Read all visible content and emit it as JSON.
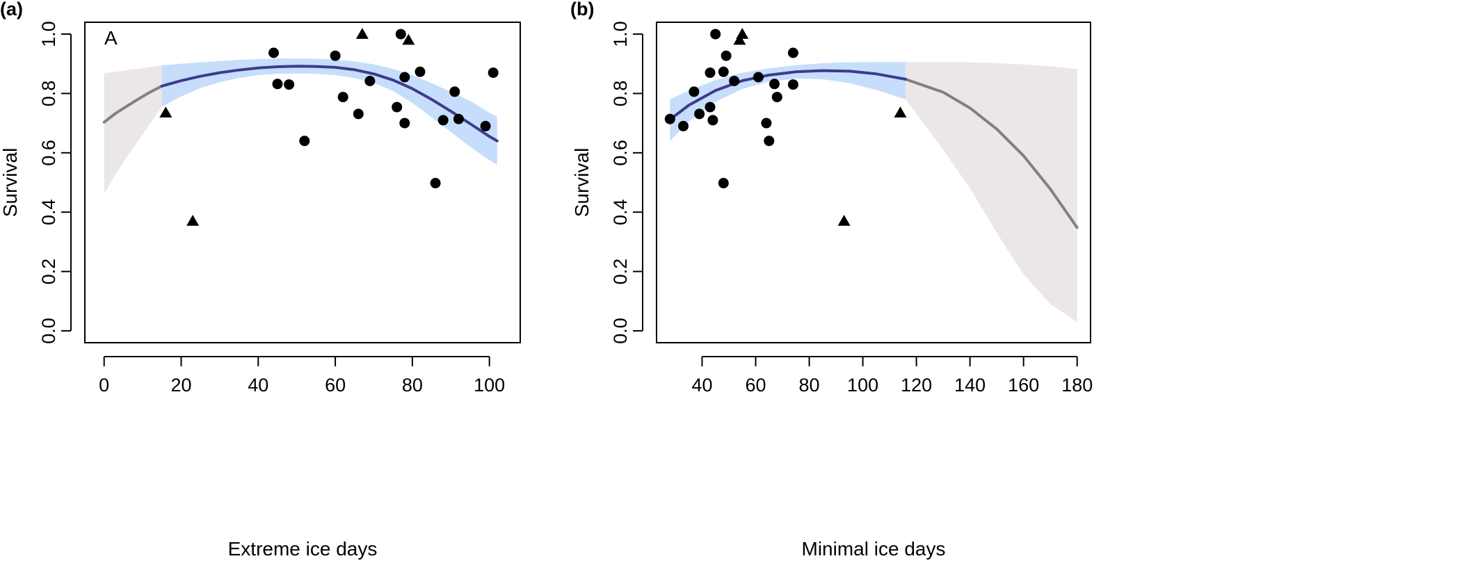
{
  "chart_data": [
    {
      "type": "scatter",
      "panel_label": "(a)",
      "inset_label": "A",
      "xlabel": "Extreme ice days",
      "ylabel": "Survival",
      "xlim": [
        -5,
        108
      ],
      "ylim": [
        -0.04,
        1.04
      ],
      "xticks": [
        0,
        20,
        40,
        60,
        80,
        100
      ],
      "yticks": [
        0.0,
        0.2,
        0.4,
        0.6,
        0.8,
        1.0
      ],
      "grid": false,
      "points_circle": [
        [
          44,
          0.937
        ],
        [
          45,
          0.832
        ],
        [
          48,
          0.83
        ],
        [
          52,
          0.64
        ],
        [
          60,
          0.927
        ],
        [
          62,
          0.788
        ],
        [
          66,
          0.731
        ],
        [
          69,
          0.842
        ],
        [
          76,
          0.754
        ],
        [
          77,
          1.0
        ],
        [
          78,
          0.855
        ],
        [
          78,
          0.7
        ],
        [
          82,
          0.873
        ],
        [
          86,
          0.498
        ],
        [
          88,
          0.71
        ],
        [
          91,
          0.806
        ],
        [
          92,
          0.714
        ],
        [
          99,
          0.69
        ],
        [
          101,
          0.87
        ]
      ],
      "points_triangle": [
        [
          16,
          0.735
        ],
        [
          23,
          0.37
        ],
        [
          67,
          1.0
        ],
        [
          79,
          0.98
        ]
      ],
      "fit_observed": {
        "x": [
          15,
          20,
          25,
          30,
          35,
          40,
          45,
          50,
          55,
          60,
          65,
          70,
          75,
          80,
          85,
          90,
          95,
          100,
          102
        ],
        "y": [
          0.825,
          0.843,
          0.858,
          0.87,
          0.879,
          0.886,
          0.89,
          0.892,
          0.891,
          0.888,
          0.88,
          0.866,
          0.845,
          0.816,
          0.78,
          0.74,
          0.698,
          0.655,
          0.64
        ],
        "lower": [
          0.755,
          0.79,
          0.818,
          0.838,
          0.852,
          0.862,
          0.866,
          0.867,
          0.866,
          0.862,
          0.852,
          0.835,
          0.808,
          0.768,
          0.72,
          0.67,
          0.62,
          0.575,
          0.56
        ],
        "upper": [
          0.895,
          0.9,
          0.905,
          0.909,
          0.913,
          0.916,
          0.918,
          0.918,
          0.917,
          0.914,
          0.908,
          0.898,
          0.883,
          0.862,
          0.835,
          0.805,
          0.775,
          0.735,
          0.722
        ]
      },
      "fit_extrapolated": {
        "x": [
          0,
          3,
          6,
          9,
          12,
          15
        ],
        "y": [
          0.703,
          0.733,
          0.758,
          0.782,
          0.805,
          0.825
        ],
        "lower": [
          0.462,
          0.528,
          0.588,
          0.643,
          0.7,
          0.755
        ],
        "upper": [
          0.868,
          0.873,
          0.879,
          0.884,
          0.889,
          0.895
        ]
      },
      "colors": {
        "fit_line": "#3d3b8e",
        "ci_observed": "#c6defb",
        "extrap_line": "#808080",
        "ci_extrapolated": "#ebe7e6",
        "points": "#000000"
      }
    },
    {
      "type": "scatter",
      "panel_label": "(b)",
      "inset_label": "",
      "xlabel": "Minimal ice days",
      "ylabel": "Survival",
      "xlim": [
        23,
        185
      ],
      "ylim": [
        -0.04,
        1.04
      ],
      "xticks": [
        40,
        60,
        80,
        100,
        120,
        140,
        160,
        180
      ],
      "yticks": [
        0.0,
        0.2,
        0.4,
        0.6,
        0.8,
        1.0
      ],
      "grid": false,
      "points_circle": [
        [
          28,
          0.714
        ],
        [
          33,
          0.69
        ],
        [
          37,
          0.806
        ],
        [
          39,
          0.731
        ],
        [
          43,
          0.87
        ],
        [
          43,
          0.754
        ],
        [
          44,
          0.71
        ],
        [
          45,
          1.0
        ],
        [
          48,
          0.873
        ],
        [
          49,
          0.927
        ],
        [
          48,
          0.498
        ],
        [
          52,
          0.842
        ],
        [
          61,
          0.855
        ],
        [
          64,
          0.7
        ],
        [
          65,
          0.64
        ],
        [
          67,
          0.832
        ],
        [
          68,
          0.788
        ],
        [
          74,
          0.937
        ],
        [
          74,
          0.83
        ]
      ],
      "points_triangle": [
        [
          54,
          0.98
        ],
        [
          55,
          1.0
        ],
        [
          93,
          0.37
        ],
        [
          114,
          0.735
        ]
      ],
      "fit_observed": {
        "x": [
          28,
          35,
          45,
          55,
          65,
          75,
          85,
          95,
          105,
          116
        ],
        "y": [
          0.712,
          0.76,
          0.81,
          0.843,
          0.862,
          0.873,
          0.877,
          0.875,
          0.866,
          0.848
        ],
        "lower": [
          0.64,
          0.705,
          0.772,
          0.815,
          0.84,
          0.85,
          0.848,
          0.835,
          0.812,
          0.78
        ],
        "upper": [
          0.78,
          0.81,
          0.845,
          0.87,
          0.885,
          0.895,
          0.902,
          0.905,
          0.906,
          0.906
        ]
      },
      "fit_extrapolated": {
        "x": [
          116,
          130,
          140,
          150,
          160,
          170,
          180
        ],
        "y": [
          0.848,
          0.804,
          0.751,
          0.68,
          0.59,
          0.478,
          0.348
        ],
        "lower": [
          0.78,
          0.61,
          0.48,
          0.33,
          0.19,
          0.09,
          0.03
        ],
        "upper": [
          0.906,
          0.906,
          0.905,
          0.902,
          0.898,
          0.892,
          0.882
        ]
      },
      "colors": {
        "fit_line": "#3d3b8e",
        "ci_observed": "#c6defb",
        "extrap_line": "#808080",
        "ci_extrapolated": "#ebe7e6",
        "points": "#000000"
      }
    }
  ]
}
